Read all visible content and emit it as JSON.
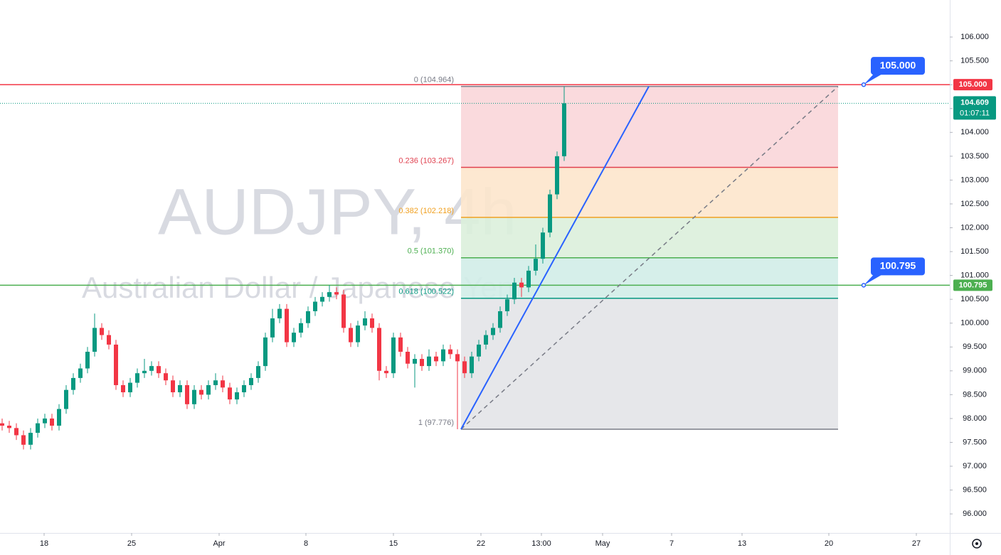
{
  "chart_data": {
    "type": "candlestick",
    "watermark": {
      "symbol": "AUDJPY, 4h",
      "description": "Australian Dollar / Japanese Yen"
    },
    "up_color": "#089981",
    "down_color": "#f23645",
    "open": [
      97.9,
      97.85,
      97.8,
      97.65,
      97.45,
      97.7,
      97.9,
      98.0,
      97.85,
      98.2,
      98.6,
      98.85,
      99.05,
      99.4,
      99.9,
      99.75,
      99.55,
      98.7,
      98.55,
      98.75,
      98.95,
      99.0,
      99.1,
      98.95,
      98.8,
      98.55,
      98.7,
      98.3,
      98.6,
      98.5,
      98.7,
      98.8,
      98.65,
      98.4,
      98.55,
      98.7,
      98.85,
      99.1,
      99.7,
      100.1,
      100.3,
      99.6,
      99.8,
      100.0,
      100.25,
      100.45,
      100.55,
      100.65,
      100.6,
      99.9,
      99.6,
      99.95,
      100.1,
      99.9,
      99.0,
      98.95,
      99.7,
      99.4,
      99.15,
      99.25,
      99.1,
      99.3,
      99.2,
      99.45,
      99.35,
      99.2,
      98.95,
      99.3,
      99.55,
      99.75,
      99.9,
      100.25,
      100.5,
      100.85,
      100.75,
      101.1,
      101.35,
      101.9,
      102.7,
      103.5
    ],
    "high": [
      98.0,
      97.95,
      97.9,
      97.75,
      97.8,
      98.0,
      98.1,
      98.1,
      98.3,
      98.7,
      98.95,
      99.15,
      99.5,
      100.2,
      100.0,
      99.85,
      99.65,
      98.8,
      98.85,
      99.05,
      99.25,
      99.2,
      99.2,
      99.05,
      98.9,
      98.8,
      98.8,
      98.7,
      98.7,
      98.8,
      98.95,
      98.9,
      98.75,
      98.65,
      98.8,
      98.95,
      99.2,
      99.8,
      100.3,
      100.4,
      100.4,
      99.9,
      100.1,
      100.35,
      100.55,
      100.65,
      100.8,
      100.75,
      100.7,
      100.0,
      100.05,
      100.25,
      100.2,
      100.0,
      99.1,
      99.8,
      99.8,
      99.5,
      99.35,
      99.35,
      99.45,
      99.4,
      99.55,
      99.55,
      99.45,
      99.3,
      99.4,
      99.65,
      99.85,
      100.0,
      100.35,
      100.6,
      100.95,
      100.95,
      101.2,
      101.65,
      102.0,
      102.8,
      103.6,
      104.964
    ],
    "low": [
      97.75,
      97.7,
      97.55,
      97.35,
      97.35,
      97.6,
      97.8,
      97.75,
      97.75,
      98.1,
      98.5,
      98.75,
      98.95,
      99.3,
      99.65,
      99.45,
      98.6,
      98.45,
      98.45,
      98.65,
      98.85,
      98.9,
      98.85,
      98.7,
      98.45,
      98.45,
      98.2,
      98.2,
      98.4,
      98.4,
      98.6,
      98.55,
      98.3,
      98.3,
      98.45,
      98.6,
      98.75,
      99.0,
      99.6,
      100.0,
      99.5,
      99.5,
      99.7,
      99.9,
      100.15,
      100.35,
      100.45,
      100.5,
      99.8,
      99.5,
      99.5,
      99.85,
      99.8,
      98.8,
      98.85,
      98.85,
      99.3,
      99.05,
      98.65,
      99.0,
      99.0,
      99.1,
      99.1,
      99.25,
      97.776,
      98.85,
      98.85,
      99.2,
      99.45,
      99.65,
      99.8,
      100.15,
      100.4,
      100.55,
      100.65,
      101.0,
      101.25,
      101.8,
      102.6,
      103.4
    ],
    "close": [
      97.85,
      97.8,
      97.65,
      97.45,
      97.7,
      97.9,
      98.0,
      97.85,
      98.2,
      98.6,
      98.85,
      99.05,
      99.4,
      99.9,
      99.75,
      99.55,
      98.7,
      98.55,
      98.75,
      98.95,
      99.0,
      99.1,
      98.95,
      98.8,
      98.55,
      98.7,
      98.3,
      98.6,
      98.5,
      98.7,
      98.8,
      98.65,
      98.4,
      98.55,
      98.7,
      98.85,
      99.1,
      99.7,
      100.1,
      100.3,
      99.6,
      99.8,
      100.0,
      100.25,
      100.45,
      100.55,
      100.65,
      100.6,
      99.9,
      99.6,
      99.95,
      100.1,
      99.9,
      99.0,
      98.95,
      99.7,
      99.4,
      99.15,
      99.25,
      99.1,
      99.3,
      99.2,
      99.45,
      99.35,
      99.2,
      98.95,
      99.3,
      99.55,
      99.75,
      99.9,
      100.25,
      100.5,
      100.85,
      100.75,
      101.1,
      101.35,
      101.9,
      102.7,
      103.5,
      104.61
    ],
    "xlim": [
      -0.3,
      133.2
    ],
    "xticks": [
      {
        "value": 5.9,
        "label": "18"
      },
      {
        "value": 18.2,
        "label": "25"
      },
      {
        "value": 30.5,
        "label": "Apr"
      },
      {
        "value": 42.7,
        "label": "8"
      },
      {
        "value": 55,
        "label": "15"
      },
      {
        "value": 67.3,
        "label": "22"
      },
      {
        "value": 75.8,
        "label": "13:00"
      },
      {
        "value": 84.4,
        "label": "May"
      },
      {
        "value": 94.1,
        "label": "7"
      },
      {
        "value": 104,
        "label": "13"
      },
      {
        "value": 116.2,
        "label": "20"
      },
      {
        "value": 128.5,
        "label": "27"
      }
    ],
    "ylim": [
      95.6,
      106.776
    ],
    "yticks": [
      {
        "value": 96,
        "label": "96.000"
      },
      {
        "value": 96.5,
        "label": "96.500"
      },
      {
        "value": 97,
        "label": "97.000"
      },
      {
        "value": 97.5,
        "label": "97.500"
      },
      {
        "value": 98,
        "label": "98.000"
      },
      {
        "value": 98.5,
        "label": "98.500"
      },
      {
        "value": 99,
        "label": "99.000"
      },
      {
        "value": 99.5,
        "label": "99.500"
      },
      {
        "value": 100,
        "label": "100.000"
      },
      {
        "value": 100.5,
        "label": "100.500"
      },
      {
        "value": 101,
        "label": "101.000"
      },
      {
        "value": 101.5,
        "label": "101.500"
      },
      {
        "value": 102,
        "label": "102.000"
      },
      {
        "value": 102.5,
        "label": "102.500"
      },
      {
        "value": 103,
        "label": "103.000"
      },
      {
        "value": 103.5,
        "label": "103.500"
      },
      {
        "value": 104,
        "label": "104.000"
      },
      {
        "value": 104.5,
        "label": "104.500"
      },
      {
        "value": 105,
        "label": "105.000"
      },
      {
        "value": 105.5,
        "label": "105.500"
      },
      {
        "value": 106,
        "label": "106.000"
      }
    ],
    "fib": {
      "x": [
        64.5,
        117.5
      ],
      "levels": [
        {
          "label": "0 (104.964)",
          "price": 104.964,
          "color": "#787b86",
          "fill": "#f9d6d9"
        },
        {
          "label": "0.236 (103.267)",
          "price": 103.267,
          "color": "#e0404f",
          "fill": "#fde6cc"
        },
        {
          "label": "0.382 (102.218)",
          "price": 102.218,
          "color": "#f0a020",
          "fill": "#dcf0dc"
        },
        {
          "label": "0.5 (101.370)",
          "price": 101.37,
          "color": "#4caf50",
          "fill": "#d2ede8"
        },
        {
          "label": "0.618 (100.522)",
          "price": 100.522,
          "color": "#089981",
          "fill": "#e3e4e8"
        },
        {
          "label": "1 (97.776)",
          "price": 97.776,
          "color": "#787b86"
        }
      ]
    },
    "trend_line": {
      "color": "#2962ff",
      "x": [
        64.5,
        90.9
      ],
      "y": [
        97.776,
        104.964
      ]
    },
    "diagonal": {
      "color": "#787b86",
      "x": [
        64.5,
        117.5
      ],
      "y": [
        97.776,
        104.964
      ]
    },
    "levels": [
      {
        "price": 105.0,
        "label": "105.000",
        "color": "#f23645",
        "callout_x": 121.1
      },
      {
        "price": 100.795,
        "label": "100.795",
        "color": "#4caf50",
        "callout_x": 121.1
      }
    ],
    "callout_color": "#2962ff",
    "last_price": {
      "price": 104.609,
      "label": "104.609",
      "countdown": "01:07:11",
      "color": "#089981"
    }
  }
}
